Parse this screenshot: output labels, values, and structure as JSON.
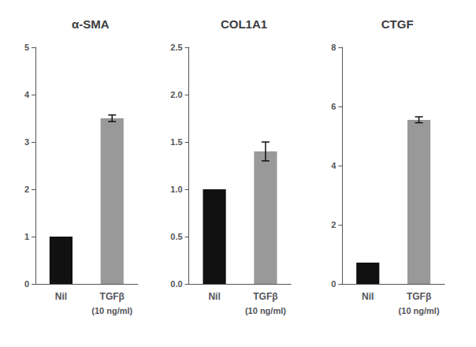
{
  "chart_data": [
    {
      "type": "bar",
      "title": "α-SMA",
      "subtitle": "(10 ng/ml)",
      "categories": [
        "Nil",
        "TGFβ"
      ],
      "values": [
        1.0,
        3.5
      ],
      "errors": [
        0.0,
        0.07
      ],
      "colors": [
        "#111111",
        "#999999"
      ],
      "ylim": [
        0,
        5
      ],
      "yticks": [
        0,
        1,
        2,
        3,
        4,
        5
      ],
      "grid": false
    },
    {
      "type": "bar",
      "title": "COL1A1",
      "subtitle": "(10 ng/ml)",
      "categories": [
        "Nil",
        "TGFβ"
      ],
      "values": [
        1.0,
        1.4
      ],
      "errors": [
        0.0,
        0.1
      ],
      "colors": [
        "#111111",
        "#999999"
      ],
      "ylim": [
        0,
        2.5
      ],
      "yticks": [
        {
          "value": 0,
          "label": "0.0"
        },
        0.5,
        {
          "value": 1,
          "label": "1.0"
        },
        1.5,
        {
          "value": 2,
          "label": "2.0"
        },
        2.5
      ],
      "grid": false
    },
    {
      "type": "bar",
      "title": "CTGF",
      "subtitle": "(10 ng/ml)",
      "categories": [
        "Nil",
        "TGFβ"
      ],
      "values": [
        0.72,
        5.55
      ],
      "errors": [
        0.0,
        0.1
      ],
      "colors": [
        "#111111",
        "#999999"
      ],
      "ylim": [
        0,
        8
      ],
      "yticks": [
        0,
        2,
        4,
        6,
        8
      ],
      "grid": false
    }
  ]
}
